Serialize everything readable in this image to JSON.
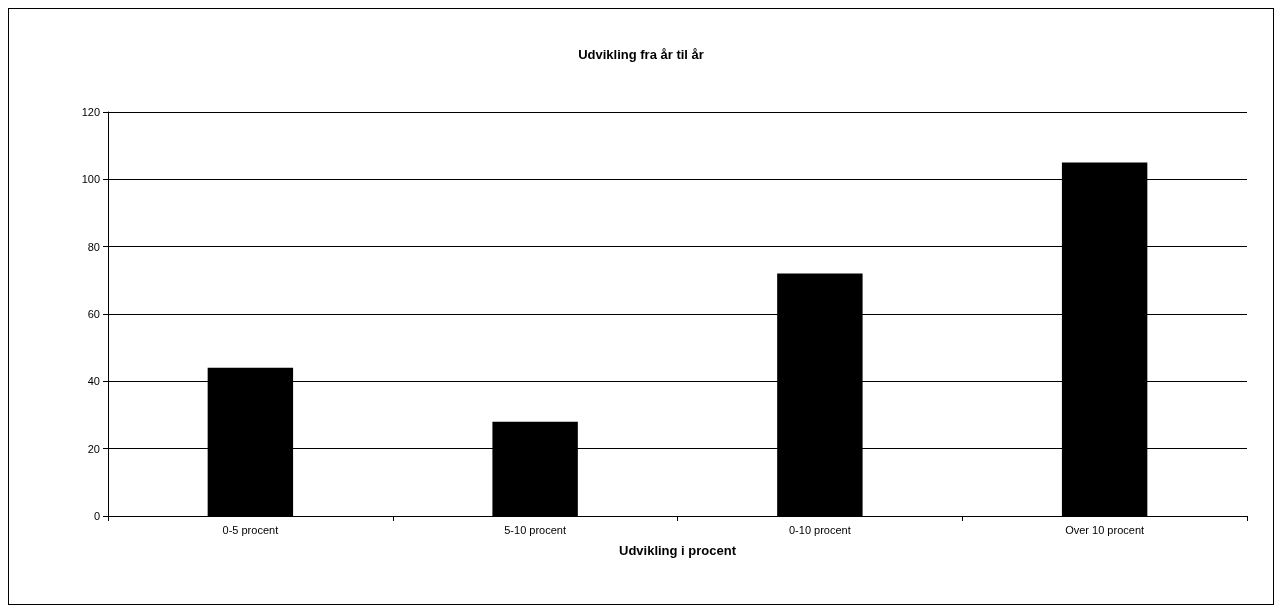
{
  "chart_data": {
    "type": "bar",
    "title": "Udvikling fra år til år",
    "xlabel": "Udvikling i procent",
    "categories": [
      "0-5 procent",
      "5-10 procent",
      "0-10 procent",
      "Over 10 procent"
    ],
    "values": [
      44,
      28,
      72,
      105
    ],
    "color": "#000000",
    "ylim": [
      0,
      120
    ],
    "yticks": [
      0,
      20,
      40,
      60,
      80,
      100,
      120
    ],
    "grid": "y"
  }
}
